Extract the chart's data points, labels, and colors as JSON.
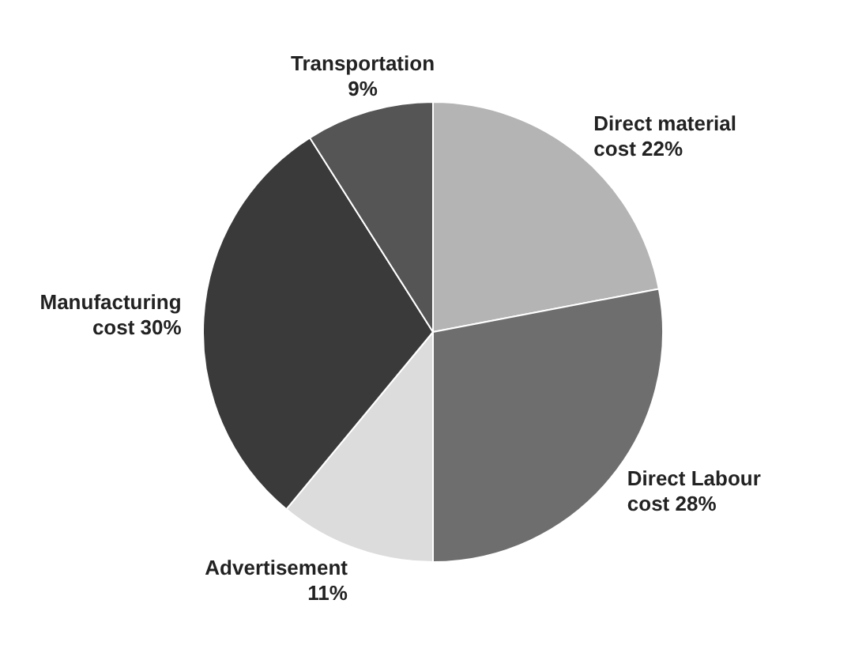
{
  "chart_data": {
    "type": "pie",
    "categories": [
      "Direct material cost",
      "Direct Labour cost",
      "Advertisement",
      "Manufacturing cost",
      "Transportation"
    ],
    "values": [
      22,
      28,
      11,
      30,
      9
    ],
    "value_labels": [
      "22%",
      "28%",
      "11%",
      "30%",
      "9%"
    ],
    "colors": [
      "#b4b4b4",
      "#6e6e6e",
      "#dcdcdc",
      "#3a3a3a",
      "#555555"
    ],
    "legend": false
  }
}
